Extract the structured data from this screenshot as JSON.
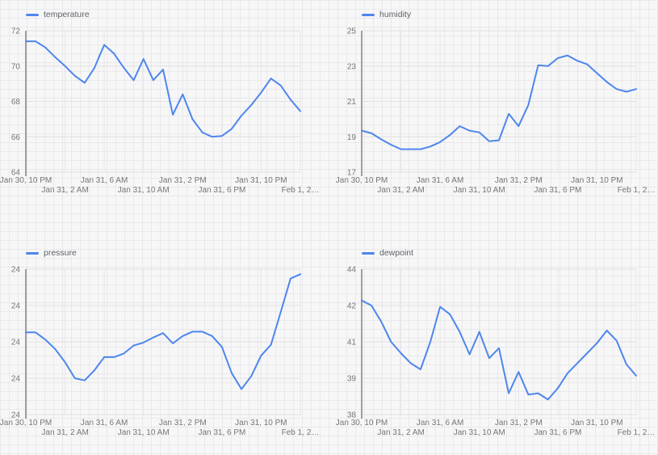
{
  "page": {
    "background_color": "#f7f7f8",
    "paper_grid_color": "#e9e9eb"
  },
  "styles": {
    "series_color": "#4e86ec",
    "axis_line_color": "#9e9e9e",
    "h_gridline_color": "#e0e0e0",
    "v_gridline_color": "#e7e7e9",
    "tick_label_color": "#767676",
    "legend_label_color": "#5f6368"
  },
  "chart_data": [
    {
      "id": "temperature",
      "type": "line",
      "legend": "temperature",
      "legend_position": "top-left",
      "grid": true,
      "ylim": [
        64,
        72
      ],
      "y_tick_labels": [
        "72",
        "70",
        "68",
        "66",
        "64"
      ],
      "x_tick_labels": [
        "Jan 30, 10 PM",
        "Jan 31, 2 AM",
        "Jan 31, 6 AM",
        "Jan 31, 10 AM",
        "Jan 31, 2 PM",
        "Jan 31, 6 PM",
        "Jan 31, 10 PM",
        "Feb 1, 2…"
      ],
      "x_tick_point_indices": [
        0,
        4,
        8,
        12,
        16,
        20,
        24,
        28
      ],
      "values": [
        71.4,
        71.4,
        71.05,
        70.5,
        70.0,
        69.45,
        69.05,
        69.9,
        71.2,
        70.7,
        69.9,
        69.2,
        70.4,
        69.2,
        69.8,
        67.25,
        68.4,
        67.0,
        66.25,
        66.0,
        66.05,
        66.45,
        67.2,
        67.8,
        68.5,
        69.3,
        68.9,
        68.1,
        67.45
      ]
    },
    {
      "id": "humidity",
      "type": "line",
      "legend": "humidity",
      "legend_position": "top-left",
      "grid": true,
      "ylim": [
        17,
        25
      ],
      "y_tick_labels": [
        "25",
        "23",
        "21",
        "19",
        "17"
      ],
      "x_tick_labels": [
        "Jan 30, 10 PM",
        "Jan 31, 2 AM",
        "Jan 31, 6 AM",
        "Jan 31, 10 AM",
        "Jan 31, 2 PM",
        "Jan 31, 6 PM",
        "Jan 31, 10 PM",
        "Feb 1, 2…"
      ],
      "x_tick_point_indices": [
        0,
        4,
        8,
        12,
        16,
        20,
        24,
        28
      ],
      "values": [
        19.35,
        19.2,
        18.85,
        18.55,
        18.3,
        18.3,
        18.3,
        18.45,
        18.7,
        19.1,
        19.6,
        19.35,
        19.25,
        18.75,
        18.8,
        20.3,
        19.6,
        20.8,
        23.05,
        23.0,
        23.45,
        23.6,
        23.3,
        23.1,
        22.6,
        22.1,
        21.7,
        21.55,
        21.7
      ]
    },
    {
      "id": "pressure",
      "type": "line",
      "legend": "pressure",
      "legend_position": "top-left",
      "grid": true,
      "ylim": [
        23.9,
        24.1
      ],
      "y_tick_labels": [
        "24",
        "24",
        "24",
        "24",
        "24"
      ],
      "x_tick_labels": [
        "Jan 30, 10 PM",
        "Jan 31, 2 AM",
        "Jan 31, 6 AM",
        "Jan 31, 10 AM",
        "Jan 31, 2 PM",
        "Jan 31, 6 PM",
        "Jan 31, 10 PM",
        "Feb 1, 2…"
      ],
      "x_tick_point_indices": [
        0,
        4,
        8,
        12,
        16,
        20,
        24,
        28
      ],
      "values": [
        24.013,
        24.013,
        24.003,
        23.99,
        23.972,
        23.95,
        23.947,
        23.961,
        23.979,
        23.979,
        23.984,
        23.995,
        23.999,
        24.006,
        24.012,
        23.998,
        24.008,
        24.014,
        24.014,
        24.008,
        23.993,
        23.957,
        23.935,
        23.953,
        23.981,
        23.996,
        24.041,
        24.087,
        24.093
      ]
    },
    {
      "id": "dewpoint",
      "type": "line",
      "legend": "dewpoint",
      "legend_position": "top-left",
      "grid": true,
      "ylim": [
        37.95,
        43.75
      ],
      "y_tick_labels": [
        "44",
        "42",
        "41",
        "39",
        "38"
      ],
      "x_tick_labels": [
        "Jan 30, 10 PM",
        "Jan 31, 2 AM",
        "Jan 31, 6 AM",
        "Jan 31, 10 AM",
        "Jan 31, 2 PM",
        "Jan 31, 6 PM",
        "Jan 31, 10 PM",
        "Feb 1, 2…"
      ],
      "x_tick_point_indices": [
        0,
        4,
        8,
        12,
        16,
        20,
        24,
        28
      ],
      "values": [
        42.5,
        42.3,
        41.65,
        40.85,
        40.4,
        40.0,
        39.75,
        40.85,
        42.25,
        41.95,
        41.25,
        40.35,
        41.25,
        40.2,
        40.6,
        38.8,
        39.65,
        38.75,
        38.8,
        38.55,
        39.0,
        39.6,
        40.0,
        40.4,
        40.8,
        41.3,
        40.9,
        39.95,
        39.5
      ]
    }
  ]
}
